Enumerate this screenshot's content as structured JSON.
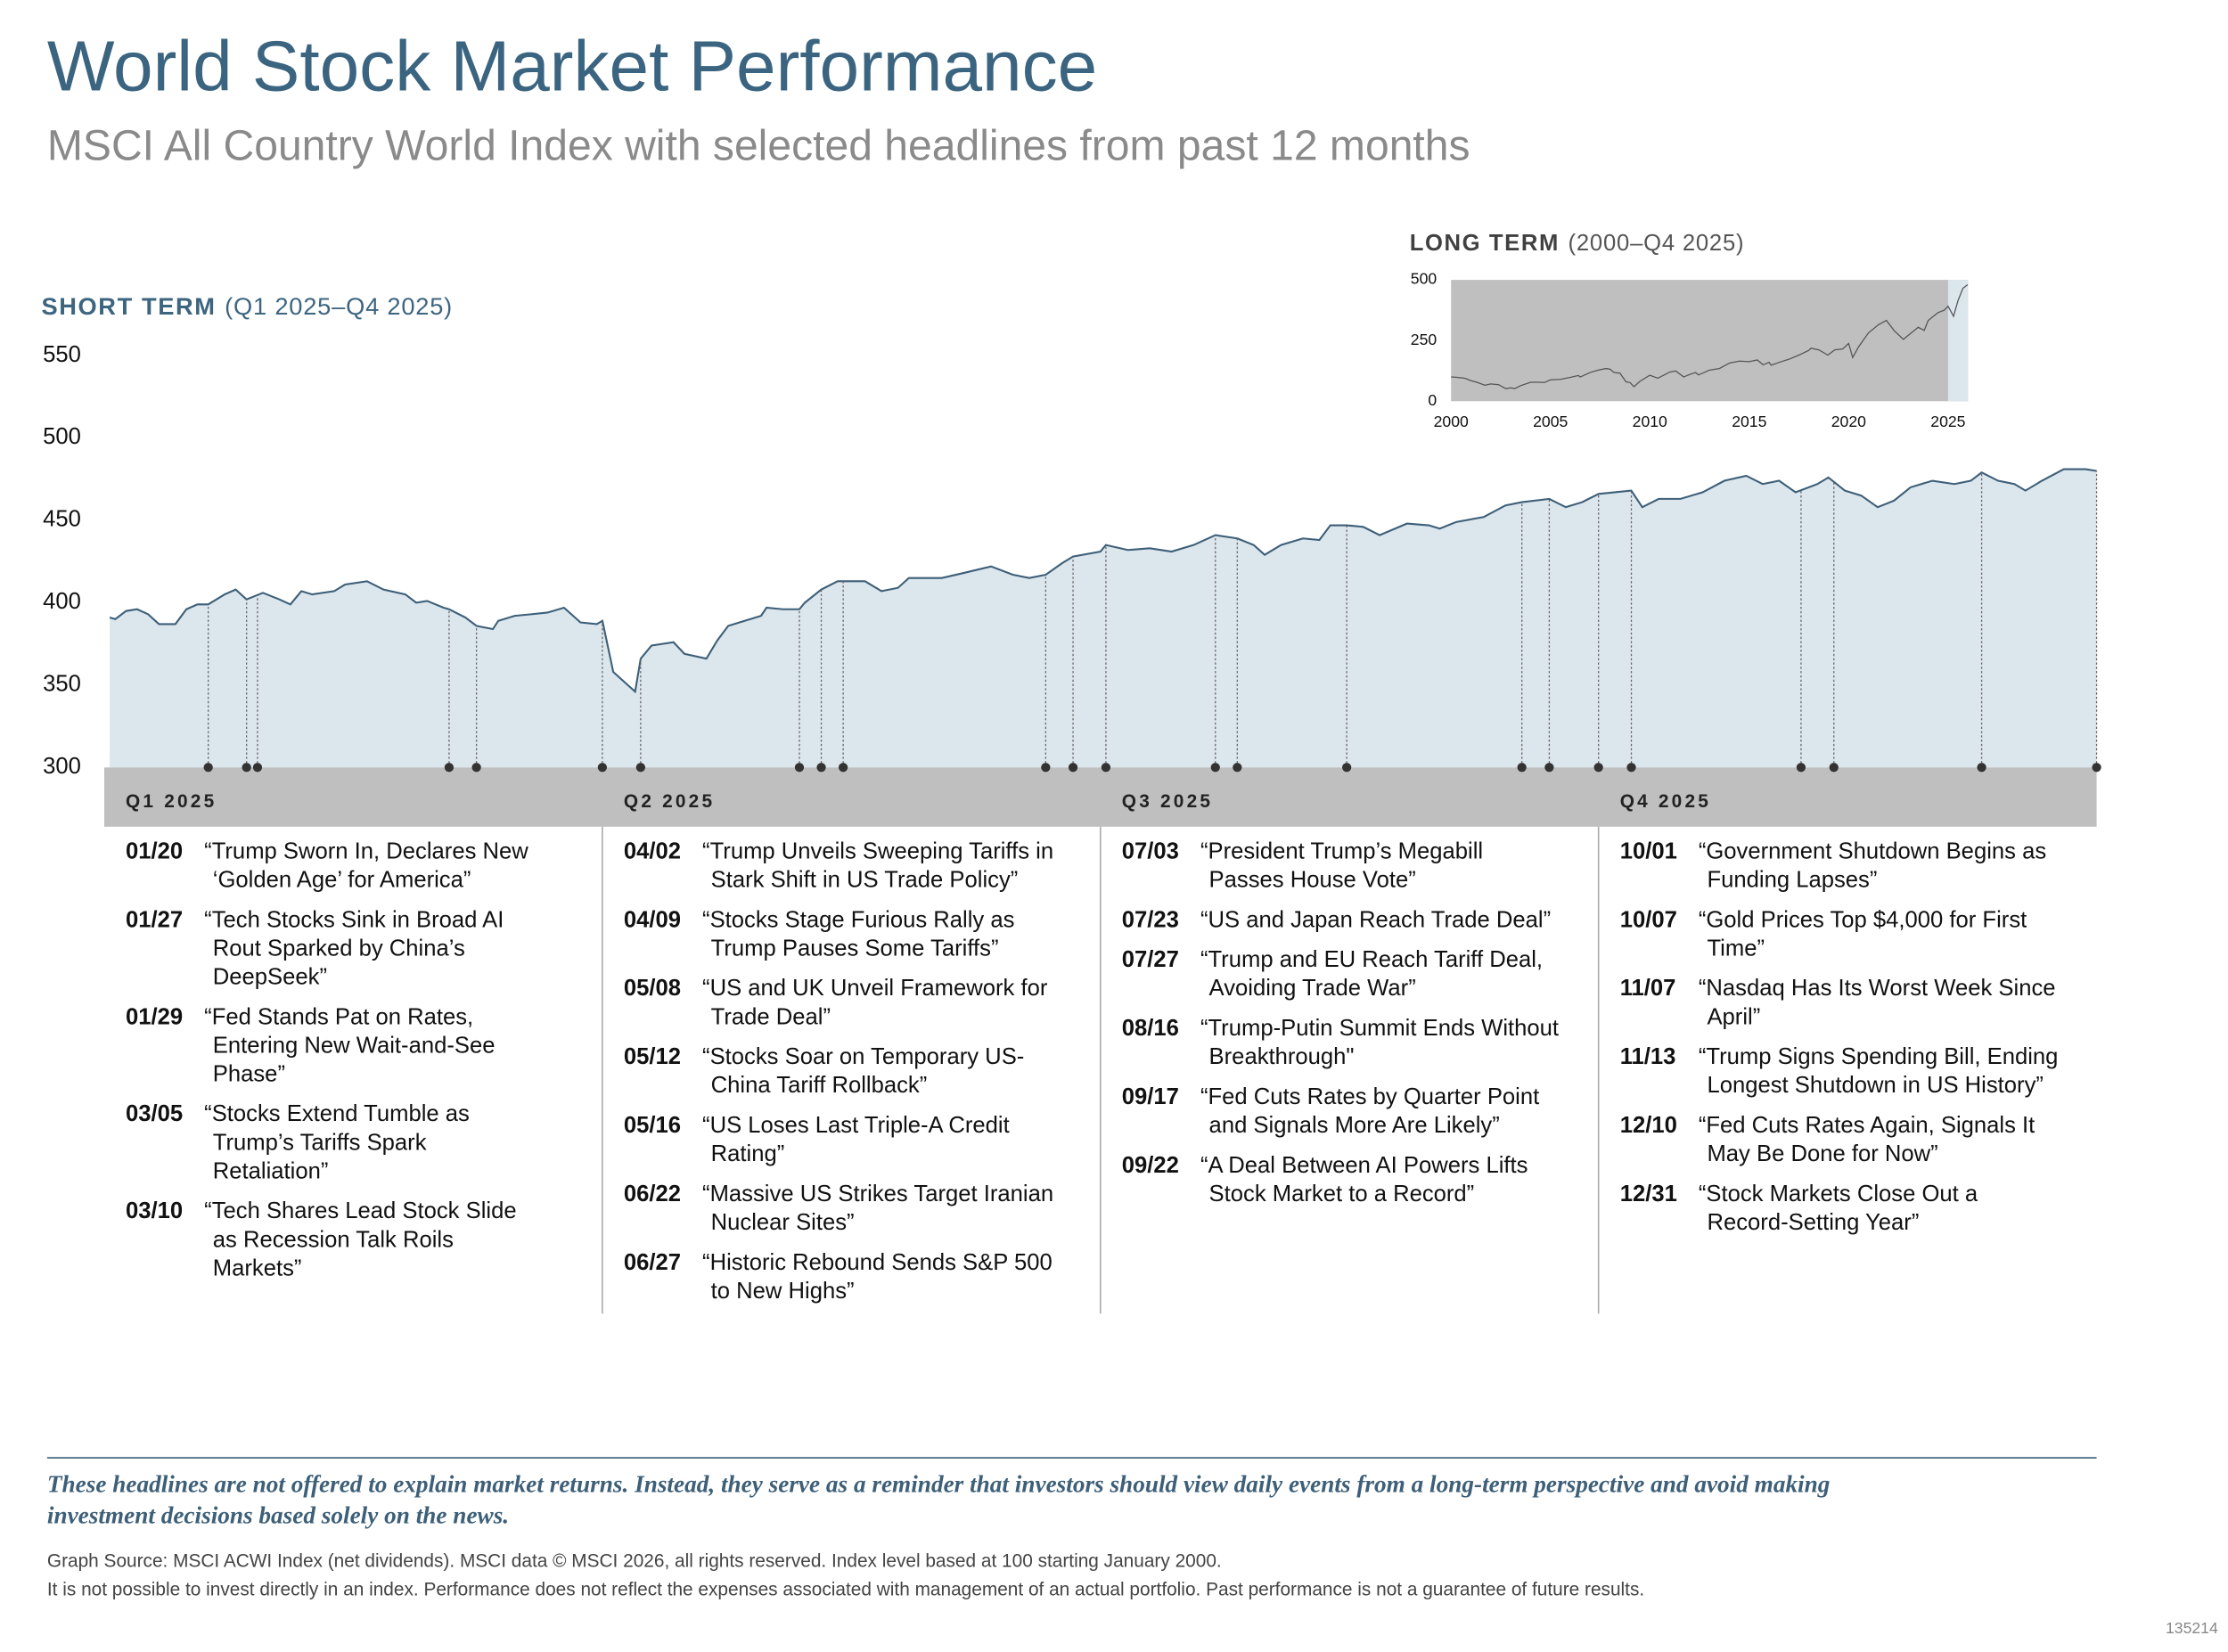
{
  "title": "World Stock Market Performance",
  "subtitle": "MSCI All Country World Index with selected headlines from past 12 months",
  "chart_data": [
    {
      "type": "area",
      "title": "SHORT TERM",
      "subtitle": "(Q1 2025–Q4 2025)",
      "x": [
        "01/02",
        "01/03",
        "01/05",
        "01/07",
        "01/09",
        "01/11",
        "01/14",
        "01/16",
        "01/18",
        "01/20",
        "01/23",
        "01/25",
        "01/27",
        "01/30",
        "02/02",
        "02/04",
        "02/06",
        "02/08",
        "02/12",
        "02/14",
        "02/18",
        "02/21",
        "02/25",
        "02/27",
        "03/01",
        "03/04",
        "03/05",
        "03/08",
        "03/10",
        "03/13",
        "03/14",
        "03/17",
        "03/20",
        "03/23",
        "03/26",
        "03/29",
        "04/01",
        "04/02",
        "04/04",
        "04/07",
        "04/08",
        "04/09",
        "04/11",
        "04/15",
        "04/17",
        "04/21",
        "04/23",
        "04/25",
        "04/28",
        "05/01",
        "05/02",
        "05/05",
        "05/08",
        "05/09",
        "05/12",
        "05/15",
        "05/20",
        "05/23",
        "05/26",
        "05/28",
        "06/03",
        "06/07",
        "06/12",
        "06/16",
        "06/19",
        "06/22",
        "06/25",
        "06/27",
        "07/02",
        "07/03",
        "07/07",
        "07/11",
        "07/15",
        "07/19",
        "07/23",
        "07/27",
        "07/30",
        "08/01",
        "08/04",
        "08/08",
        "08/11",
        "08/13",
        "08/16",
        "08/19",
        "08/22",
        "08/27",
        "08/31",
        "09/02",
        "09/05",
        "09/10",
        "09/14",
        "09/17",
        "09/22",
        "09/25",
        "09/28",
        "10/01",
        "10/07",
        "10/09",
        "10/12",
        "10/16",
        "10/20",
        "10/24",
        "10/28",
        "10/31",
        "11/03",
        "11/06",
        "11/10",
        "11/12",
        "11/15",
        "11/18",
        "11/21",
        "11/24",
        "11/27",
        "12/01",
        "12/05",
        "12/08",
        "12/10",
        "12/13",
        "12/16",
        "12/18",
        "12/21",
        "12/25",
        "12/29",
        "12/31"
      ],
      "values": [
        391,
        390,
        395,
        396,
        393,
        387,
        387,
        396,
        399,
        399,
        405,
        408,
        402,
        406,
        402,
        399,
        407,
        405,
        407,
        411,
        413,
        408,
        405,
        400,
        401,
        397,
        396,
        391,
        386,
        384,
        389,
        392,
        393,
        394,
        397,
        388,
        387,
        389,
        358,
        349,
        346,
        366,
        374,
        376,
        369,
        366,
        377,
        386,
        389,
        392,
        397,
        396,
        396,
        400,
        408,
        413,
        413,
        407,
        409,
        415,
        415,
        418,
        422,
        417,
        415,
        417,
        424,
        428,
        431,
        435,
        432,
        433,
        431,
        435,
        441,
        439,
        435,
        429,
        435,
        439,
        438,
        447,
        447,
        446,
        441,
        448,
        447,
        445,
        449,
        452,
        459,
        461,
        463,
        458,
        461,
        466,
        468,
        458,
        463,
        463,
        467,
        474,
        477,
        472,
        474,
        467,
        472,
        476,
        468,
        465,
        458,
        462,
        470,
        474,
        472,
        474,
        479,
        474,
        472,
        468,
        474,
        481,
        481,
        480
      ],
      "color": "#3d5f78",
      "fill": "#dce6ed",
      "ylim": [
        300,
        550
      ],
      "yticks": [
        300,
        350,
        400,
        450,
        500,
        550
      ],
      "quarters": [
        "Q1 2025",
        "Q2 2025",
        "Q3 2025",
        "Q4 2025"
      ]
    },
    {
      "type": "line",
      "title": "LONG TERM",
      "subtitle": "(2000–Q4 2025)",
      "x": [
        2000,
        2000.3,
        2000.7,
        2001,
        2001.3,
        2001.7,
        2002,
        2002.4,
        2002.75,
        2003,
        2003.2,
        2003.5,
        2004,
        2004.4,
        2004.7,
        2005,
        2005.5,
        2006,
        2006.4,
        2006.5,
        2007,
        2007.4,
        2007.8,
        2008,
        2008.2,
        2008.5,
        2008.8,
        2009,
        2009.2,
        2009.5,
        2010,
        2010.4,
        2011,
        2011.3,
        2011.7,
        2012,
        2012.3,
        2012.45,
        2013,
        2013.5,
        2014,
        2014.5,
        2015,
        2015.4,
        2015.7,
        2016,
        2016.1,
        2016.5,
        2017,
        2017.5,
        2018,
        2018.1,
        2018.5,
        2018.95,
        2019.3,
        2019.7,
        2020,
        2020.2,
        2020.5,
        2021,
        2021.5,
        2021.9,
        2022.3,
        2022.75,
        2023,
        2023.5,
        2023.8,
        2024,
        2024.5,
        2024.8,
        2025,
        2025.27,
        2025.5,
        2025.75,
        2025.99
      ],
      "values": [
        100,
        98,
        95,
        85,
        78,
        66,
        71,
        68,
        52,
        55,
        52,
        64,
        78,
        78,
        77,
        88,
        90,
        98,
        106,
        100,
        118,
        128,
        135,
        132,
        118,
        115,
        80,
        77,
        60,
        82,
        107,
        95,
        120,
        125,
        100,
        110,
        118,
        108,
        128,
        135,
        157,
        165,
        163,
        170,
        150,
        160,
        148,
        160,
        173,
        190,
        210,
        218,
        212,
        190,
        212,
        215,
        238,
        180,
        225,
        282,
        315,
        333,
        290,
        255,
        272,
        305,
        292,
        333,
        365,
        375,
        391,
        350,
        415,
        465,
        480
      ],
      "color": "#555555",
      "background": "#bfbfbf",
      "highlight": [
        2025,
        2026
      ],
      "highlight_color": "#dce6ed",
      "xlim": [
        2000,
        2026
      ],
      "xticks": [
        2000,
        2005,
        2010,
        2015,
        2020,
        2025
      ],
      "ylim": [
        0,
        500
      ],
      "yticks": [
        0,
        250,
        500
      ]
    }
  ],
  "headlines": [
    [
      {
        "date": "01/20",
        "lines": [
          "“Trump Sworn In, Declares New",
          "‘Golden Age’ for America”"
        ]
      },
      {
        "date": "01/27",
        "lines": [
          "“Tech Stocks Sink in Broad AI",
          "Rout Sparked by China’s",
          "DeepSeek”"
        ]
      },
      {
        "date": "01/29",
        "lines": [
          "“Fed Stands Pat on Rates,",
          "Entering New Wait-and-See",
          "Phase”"
        ]
      },
      {
        "date": "03/05",
        "lines": [
          "“Stocks Extend Tumble as",
          "Trump’s Tariffs Spark",
          "Retaliation”"
        ]
      },
      {
        "date": "03/10",
        "lines": [
          "“Tech Shares Lead Stock Slide",
          "as Recession Talk Roils",
          "Markets”"
        ]
      }
    ],
    [
      {
        "date": "04/02",
        "lines": [
          "“Trump Unveils Sweeping Tariffs in",
          "Stark Shift in US Trade Policy”"
        ]
      },
      {
        "date": "04/09",
        "lines": [
          "“Stocks Stage Furious Rally as",
          "Trump Pauses Some Tariffs”"
        ]
      },
      {
        "date": "05/08",
        "lines": [
          "“US and UK Unveil Framework for",
          "Trade Deal”"
        ]
      },
      {
        "date": "05/12",
        "lines": [
          "“Stocks Soar on Temporary US-",
          "China Tariff Rollback”"
        ]
      },
      {
        "date": "05/16",
        "lines": [
          "“US Loses Last Triple-A Credit",
          "Rating”"
        ]
      },
      {
        "date": "06/22",
        "lines": [
          "“Massive US Strikes Target Iranian",
          "Nuclear Sites”"
        ]
      },
      {
        "date": "06/27",
        "lines": [
          "“Historic Rebound Sends S&P 500",
          "to New Highs”"
        ]
      }
    ],
    [
      {
        "date": "07/03",
        "lines": [
          "“President Trump’s Megabill",
          "Passes House Vote”"
        ]
      },
      {
        "date": "07/23",
        "lines": [
          "“US and Japan Reach Trade Deal”"
        ]
      },
      {
        "date": "07/27",
        "lines": [
          "“Trump and EU Reach Tariff Deal,",
          "Avoiding Trade War”"
        ]
      },
      {
        "date": "08/16",
        "lines": [
          "“Trump-Putin Summit Ends Without",
          "Breakthrough\""
        ]
      },
      {
        "date": "09/17",
        "lines": [
          "“Fed Cuts Rates by Quarter Point",
          "and Signals More Are Likely”"
        ]
      },
      {
        "date": "09/22",
        "lines": [
          "“A Deal Between AI Powers Lifts",
          "Stock Market to a Record”"
        ]
      }
    ],
    [
      {
        "date": "10/01",
        "lines": [
          "“Government Shutdown Begins as",
          "Funding Lapses”"
        ]
      },
      {
        "date": "10/07",
        "lines": [
          "“Gold Prices Top $4,000 for First",
          "Time”"
        ]
      },
      {
        "date": "11/07",
        "lines": [
          "“Nasdaq Has Its Worst Week Since",
          "April”"
        ]
      },
      {
        "date": "11/13",
        "lines": [
          "“Trump Signs Spending Bill, Ending",
          "Longest Shutdown in US History”"
        ]
      },
      {
        "date": "12/10",
        "lines": [
          "“Fed Cuts Rates Again, Signals It",
          "May Be Done for Now”"
        ]
      },
      {
        "date": "12/31",
        "lines": [
          "“Stock Markets Close Out a",
          "Record-Setting Year”"
        ]
      }
    ]
  ],
  "disclaimer": [
    "These headlines are not offered to explain market returns. Instead, they serve as a reminder that investors should view daily events from a long-term perspective and avoid making",
    "investment decisions based solely on the news."
  ],
  "source": [
    "Graph Source: MSCI ACWI Index (net dividends). MSCI data © MSCI 2026, all rights reserved. Index level based at 100 starting January 2000.",
    "It is not possible to invest directly in an index. Performance does not reflect the expenses associated with management of an actual portfolio. Past performance is not a guarantee of future results."
  ],
  "code": "135214"
}
